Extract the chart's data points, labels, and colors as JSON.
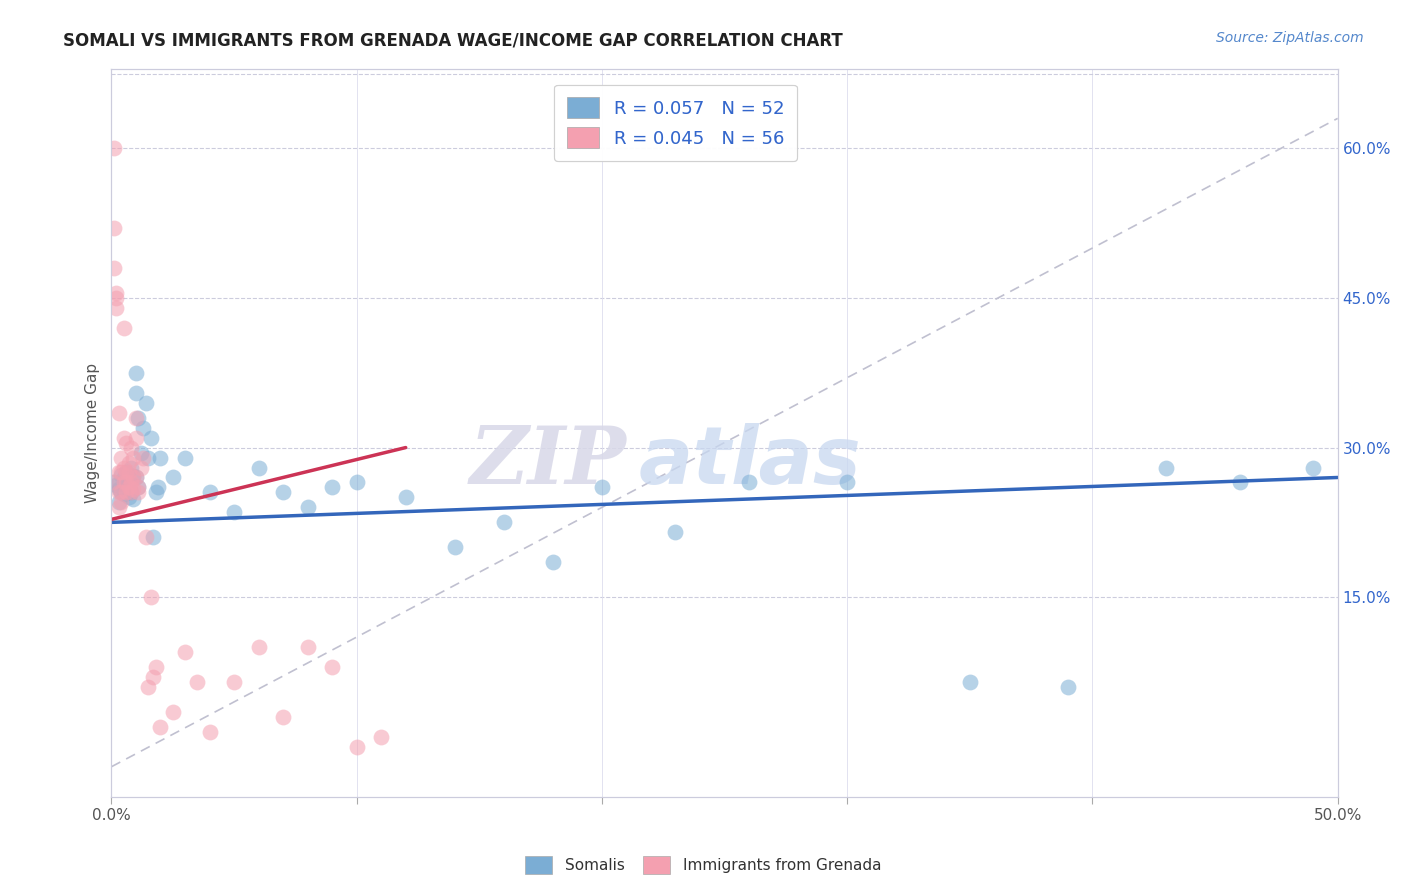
{
  "title": "SOMALI VS IMMIGRANTS FROM GRENADA WAGE/INCOME GAP CORRELATION CHART",
  "source": "Source: ZipAtlas.com",
  "ylabel": "Wage/Income Gap",
  "xlim": [
    0.0,
    0.5
  ],
  "ylim": [
    -0.05,
    0.68
  ],
  "x_ticks": [
    0.0,
    0.1,
    0.2,
    0.3,
    0.4,
    0.5
  ],
  "x_tick_labels": [
    "0.0%",
    "",
    "",
    "",
    "",
    "50.0%"
  ],
  "y_ticks_right": [
    0.15,
    0.3,
    0.45,
    0.6
  ],
  "y_tick_labels_right": [
    "15.0%",
    "30.0%",
    "45.0%",
    "60.0%"
  ],
  "legend_label1": "R = 0.057   N = 52",
  "legend_label2": "R = 0.045   N = 56",
  "legend_label_bottom1": "Somalis",
  "legend_label_bottom2": "Immigrants from Grenada",
  "color_blue": "#7BADD4",
  "color_pink": "#F4A0B0",
  "line_blue": "#3366BB",
  "line_pink": "#CC3355",
  "line_dashed_color": "#C0C0D0",
  "watermark_zip": "ZIP",
  "watermark_atlas": "atlas",
  "somali_x": [
    0.001,
    0.002,
    0.003,
    0.003,
    0.004,
    0.004,
    0.005,
    0.005,
    0.006,
    0.006,
    0.007,
    0.007,
    0.008,
    0.008,
    0.009,
    0.009,
    0.01,
    0.01,
    0.01,
    0.011,
    0.011,
    0.012,
    0.013,
    0.014,
    0.015,
    0.016,
    0.017,
    0.018,
    0.019,
    0.02,
    0.025,
    0.03,
    0.04,
    0.05,
    0.06,
    0.07,
    0.08,
    0.09,
    0.1,
    0.12,
    0.14,
    0.16,
    0.18,
    0.2,
    0.23,
    0.26,
    0.3,
    0.35,
    0.39,
    0.43,
    0.46,
    0.49
  ],
  "somali_y": [
    0.265,
    0.262,
    0.258,
    0.245,
    0.272,
    0.255,
    0.27,
    0.253,
    0.275,
    0.26,
    0.265,
    0.25,
    0.28,
    0.255,
    0.271,
    0.248,
    0.375,
    0.355,
    0.27,
    0.33,
    0.26,
    0.295,
    0.32,
    0.345,
    0.29,
    0.31,
    0.21,
    0.255,
    0.26,
    0.29,
    0.27,
    0.29,
    0.255,
    0.235,
    0.28,
    0.255,
    0.24,
    0.26,
    0.265,
    0.25,
    0.2,
    0.225,
    0.185,
    0.26,
    0.215,
    0.265,
    0.265,
    0.065,
    0.06,
    0.28,
    0.265,
    0.28
  ],
  "grenada_x": [
    0.0005,
    0.001,
    0.001,
    0.001,
    0.002,
    0.002,
    0.002,
    0.003,
    0.003,
    0.003,
    0.003,
    0.004,
    0.004,
    0.004,
    0.004,
    0.005,
    0.005,
    0.005,
    0.005,
    0.006,
    0.006,
    0.006,
    0.006,
    0.007,
    0.007,
    0.007,
    0.008,
    0.008,
    0.008,
    0.009,
    0.009,
    0.009,
    0.01,
    0.01,
    0.01,
    0.011,
    0.011,
    0.012,
    0.013,
    0.014,
    0.015,
    0.016,
    0.017,
    0.018,
    0.02,
    0.025,
    0.03,
    0.035,
    0.04,
    0.05,
    0.06,
    0.07,
    0.08,
    0.09,
    0.1,
    0.11
  ],
  "grenada_y": [
    0.265,
    0.6,
    0.52,
    0.48,
    0.455,
    0.45,
    0.44,
    0.335,
    0.275,
    0.255,
    0.24,
    0.29,
    0.275,
    0.255,
    0.245,
    0.42,
    0.31,
    0.28,
    0.265,
    0.305,
    0.275,
    0.265,
    0.255,
    0.285,
    0.275,
    0.26,
    0.3,
    0.265,
    0.255,
    0.29,
    0.27,
    0.258,
    0.33,
    0.31,
    0.27,
    0.26,
    0.255,
    0.28,
    0.29,
    0.21,
    0.06,
    0.15,
    0.07,
    0.08,
    0.02,
    0.035,
    0.095,
    0.065,
    0.015,
    0.065,
    0.1,
    0.03,
    0.1,
    0.08,
    0.0,
    0.01
  ],
  "blue_line_x0": 0.0,
  "blue_line_y0": 0.225,
  "blue_line_x1": 0.5,
  "blue_line_y1": 0.27,
  "pink_line_x0": 0.0,
  "pink_line_y0": 0.228,
  "pink_line_x1": 0.12,
  "pink_line_y1": 0.3,
  "dash_line_x0": 0.0,
  "dash_line_y0": -0.02,
  "dash_line_x1": 0.5,
  "dash_line_y1": 0.63
}
